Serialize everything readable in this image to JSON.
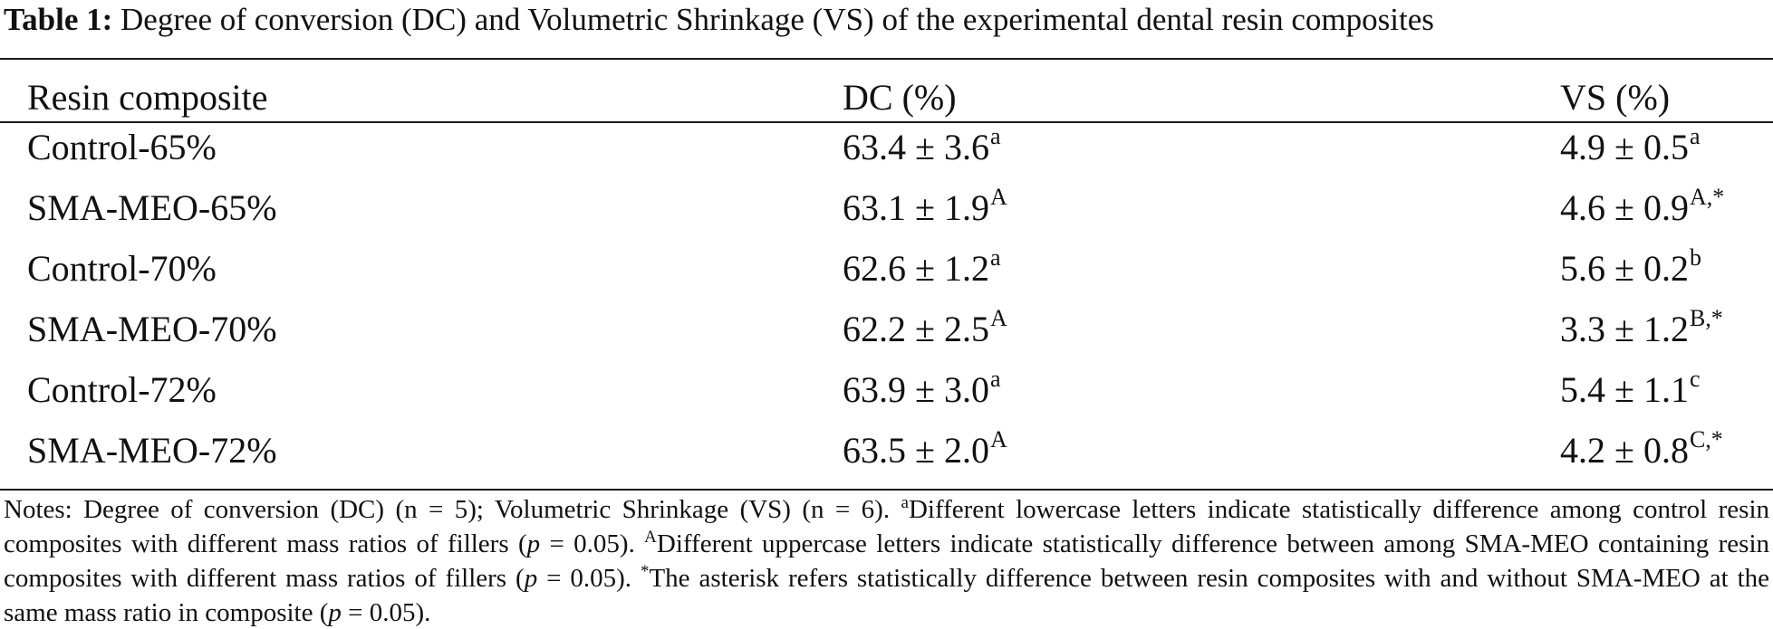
{
  "caption": {
    "label": "Table 1:",
    "text": "Degree of conversion (DC) and Volumetric Shrinkage (VS) of the experimental dental resin composites"
  },
  "columns": [
    "Resin composite",
    "DC (%)",
    "VS (%)"
  ],
  "rows": [
    {
      "name": "Control-65%",
      "dc": "63.4 ± 3.6",
      "dc_sup": "a",
      "vs": "4.9 ± 0.5",
      "vs_sup": "a"
    },
    {
      "name": "SMA-MEO-65%",
      "dc": "63.1 ± 1.9",
      "dc_sup": "A",
      "vs": "4.6 ± 0.9",
      "vs_sup": "A,*"
    },
    {
      "name": "Control-70%",
      "dc": "62.6 ± 1.2",
      "dc_sup": "a",
      "vs": "5.6 ± 0.2",
      "vs_sup": "b"
    },
    {
      "name": "SMA-MEO-70%",
      "dc": "62.2 ± 2.5",
      "dc_sup": "A",
      "vs": "3.3 ± 1.2",
      "vs_sup": "B,*"
    },
    {
      "name": "Control-72%",
      "dc": "63.9 ± 3.0",
      "dc_sup": "a",
      "vs": "5.4 ± 1.1",
      "vs_sup": "c"
    },
    {
      "name": "SMA-MEO-72%",
      "dc": "63.5 ± 2.0",
      "dc_sup": "A",
      "vs": "4.2 ± 0.8",
      "vs_sup": "C,*"
    }
  ],
  "notes": {
    "part1": "Notes: Degree of conversion (DC) (n = 5); Volumetric Shrinkage (VS) (n = 6). ",
    "sup1": "a",
    "part2": "Different lowercase letters indicate statistically difference among control resin composites with different mass ratios of fillers (",
    "p1": "p",
    "part3": " = 0.05). ",
    "sup2": "A",
    "part4": "Different uppercase letters indicate statistically difference between among SMA-MEO containing resin composites with different mass ratios of fillers (",
    "p2": "p",
    "part5": " = 0.05). ",
    "sup3": "*",
    "part6": "The asterisk refers statistically difference between resin composites with and without SMA-MEO at the same mass ratio in composite (",
    "p3": "p",
    "part7": " = 0.05)."
  }
}
